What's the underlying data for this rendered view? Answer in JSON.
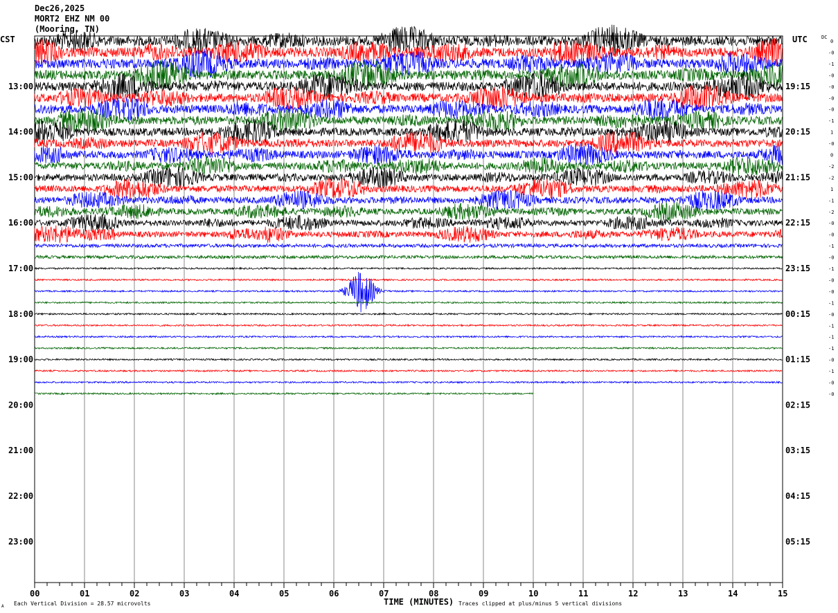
{
  "header": {
    "date": "Dec26,2025",
    "station": "MORT2 EHZ NM 00",
    "location": "(Mooring, TN)"
  },
  "left_zone_label": "CST",
  "right_zone_label": "UTC",
  "dc_label": "DC",
  "footer": {
    "vertical_division": "Each Vertical Division =   28.57 microvolts",
    "xlabel": "TIME (MINUTES)",
    "clip_note": "Traces clipped at plus/minus 5 vertical divisions",
    "corner_mark": "A"
  },
  "chart_data": {
    "type": "line",
    "subtype": "helicorder",
    "xlabel": "TIME (MINUTES)",
    "xlim": [
      0,
      15
    ],
    "x_ticks": [
      "00",
      "01",
      "02",
      "03",
      "04",
      "05",
      "06",
      "07",
      "08",
      "09",
      "10",
      "11",
      "12",
      "13",
      "14",
      "15"
    ],
    "grid": "vertical lines every minute",
    "trace_colors": [
      "#000000",
      "#ff0000",
      "#0000ff",
      "#006400"
    ],
    "minutes_per_line": 15,
    "traces_recorded": 32,
    "last_trace_end_minute": 10,
    "left_hour_labels": [
      "13:00",
      "14:00",
      "15:00",
      "16:00",
      "17:00",
      "18:00",
      "19:00",
      "20:00",
      "21:00",
      "22:00",
      "23:00"
    ],
    "right_hour_labels": [
      "19:15",
      "20:15",
      "21:15",
      "22:15",
      "23:15",
      "00:15",
      "01:15",
      "02:15",
      "03:15",
      "04:15",
      "05:15"
    ],
    "dc_offsets": [
      "0",
      "-0",
      "-1",
      "-0",
      "-0",
      "-0",
      "-0",
      "-1",
      "1",
      "-0",
      "0",
      "-2",
      "-2",
      "1",
      "-1",
      "-2",
      "-0",
      "-0",
      "-1",
      "-0",
      "-1",
      "-0",
      "-0",
      "-1",
      "-0",
      "-1",
      "-1",
      "-1",
      "-0",
      "-1",
      "-0",
      "-0"
    ]
  }
}
